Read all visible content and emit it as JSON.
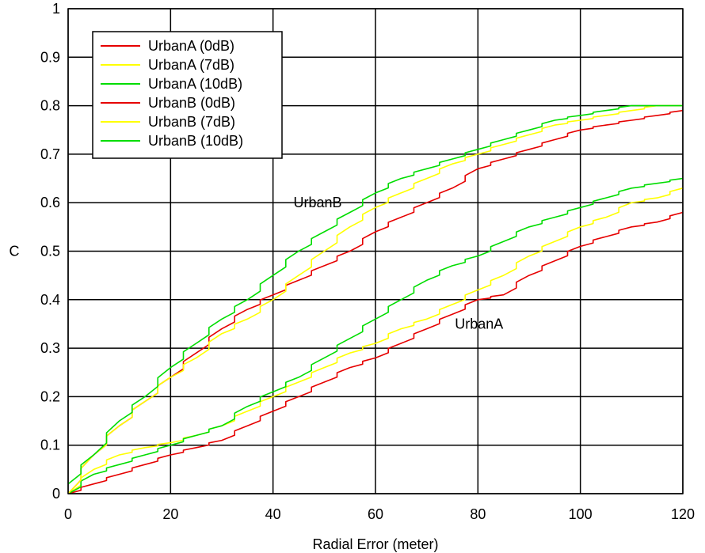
{
  "chart_data": {
    "type": "line",
    "title": "",
    "xlabel": "Radial Error (meter)",
    "ylabel": "C",
    "xlim": [
      0,
      120
    ],
    "ylim": [
      0,
      1
    ],
    "xticks": [
      "0",
      "20",
      "40",
      "60",
      "80",
      "100",
      "120"
    ],
    "yticks": [
      "0",
      "0.1",
      "0.2",
      "0.3",
      "0.4",
      "0.5",
      "0.6",
      "0.7",
      "0.8",
      "0.9",
      "1"
    ],
    "grid": true,
    "legend_position": "top-left",
    "annotations": [
      {
        "text": "UrbanB",
        "x": 44,
        "y": 0.6
      },
      {
        "text": "UrbanA",
        "x": 75.5,
        "y": 0.35
      }
    ],
    "series": [
      {
        "name": "UrbanA (0dB)",
        "color": "#e60000",
        "x": [
          0,
          5,
          10,
          15,
          20,
          25,
          30,
          35,
          40,
          45,
          50,
          55,
          60,
          65,
          70,
          75,
          80,
          85,
          90,
          95,
          100,
          105,
          110,
          115,
          120
        ],
        "y": [
          0,
          0.02,
          0.04,
          0.06,
          0.08,
          0.095,
          0.11,
          0.14,
          0.17,
          0.2,
          0.23,
          0.26,
          0.28,
          0.31,
          0.34,
          0.37,
          0.4,
          0.41,
          0.45,
          0.48,
          0.51,
          0.53,
          0.55,
          0.56,
          0.58
        ]
      },
      {
        "name": "UrbanA (7dB)",
        "color": "#ffff00",
        "x": [
          0,
          5,
          10,
          15,
          20,
          25,
          30,
          35,
          40,
          45,
          50,
          55,
          60,
          65,
          70,
          75,
          80,
          85,
          90,
          95,
          100,
          105,
          110,
          115,
          120
        ],
        "y": [
          0,
          0.05,
          0.08,
          0.095,
          0.105,
          0.12,
          0.14,
          0.17,
          0.2,
          0.23,
          0.26,
          0.29,
          0.31,
          0.34,
          0.36,
          0.39,
          0.42,
          0.45,
          0.49,
          0.52,
          0.55,
          0.57,
          0.6,
          0.61,
          0.63
        ]
      },
      {
        "name": "UrbanA (10dB)",
        "color": "#00dd00",
        "x": [
          0,
          5,
          10,
          15,
          20,
          25,
          30,
          35,
          40,
          45,
          50,
          55,
          60,
          65,
          70,
          75,
          80,
          85,
          90,
          95,
          100,
          105,
          110,
          115,
          120
        ],
        "y": [
          0,
          0.04,
          0.06,
          0.08,
          0.1,
          0.12,
          0.14,
          0.18,
          0.21,
          0.24,
          0.28,
          0.32,
          0.36,
          0.4,
          0.44,
          0.47,
          0.49,
          0.52,
          0.55,
          0.57,
          0.59,
          0.61,
          0.63,
          0.64,
          0.65
        ]
      },
      {
        "name": "UrbanB (0dB)",
        "color": "#e60000",
        "x": [
          0,
          5,
          10,
          15,
          20,
          25,
          30,
          35,
          40,
          45,
          50,
          55,
          60,
          65,
          70,
          75,
          80,
          85,
          90,
          95,
          100,
          105,
          110,
          115,
          120
        ],
        "y": [
          0,
          0.08,
          0.14,
          0.19,
          0.24,
          0.29,
          0.34,
          0.38,
          0.41,
          0.44,
          0.47,
          0.5,
          0.54,
          0.57,
          0.6,
          0.63,
          0.67,
          0.69,
          0.71,
          0.73,
          0.75,
          0.76,
          0.77,
          0.78,
          0.79
        ]
      },
      {
        "name": "UrbanB (7dB)",
        "color": "#ffff00",
        "x": [
          0,
          5,
          10,
          15,
          20,
          25,
          30,
          35,
          40,
          45,
          50,
          55,
          60,
          65,
          70,
          75,
          80,
          85,
          90,
          95,
          100,
          105,
          110,
          115,
          120
        ],
        "y": [
          0,
          0.08,
          0.14,
          0.19,
          0.24,
          0.28,
          0.33,
          0.36,
          0.4,
          0.45,
          0.5,
          0.55,
          0.59,
          0.62,
          0.65,
          0.68,
          0.7,
          0.72,
          0.74,
          0.76,
          0.77,
          0.78,
          0.79,
          0.8,
          0.8
        ]
      },
      {
        "name": "UrbanB (10dB)",
        "color": "#00dd00",
        "x": [
          0,
          5,
          10,
          15,
          20,
          25,
          30,
          35,
          40,
          45,
          50,
          55,
          60,
          65,
          70,
          75,
          80,
          85,
          90,
          95,
          100,
          105,
          110,
          115,
          120
        ],
        "y": [
          0.02,
          0.08,
          0.15,
          0.2,
          0.26,
          0.31,
          0.36,
          0.4,
          0.45,
          0.5,
          0.54,
          0.58,
          0.62,
          0.65,
          0.67,
          0.69,
          0.71,
          0.73,
          0.75,
          0.77,
          0.78,
          0.79,
          0.8,
          0.8,
          0.8
        ]
      }
    ]
  }
}
